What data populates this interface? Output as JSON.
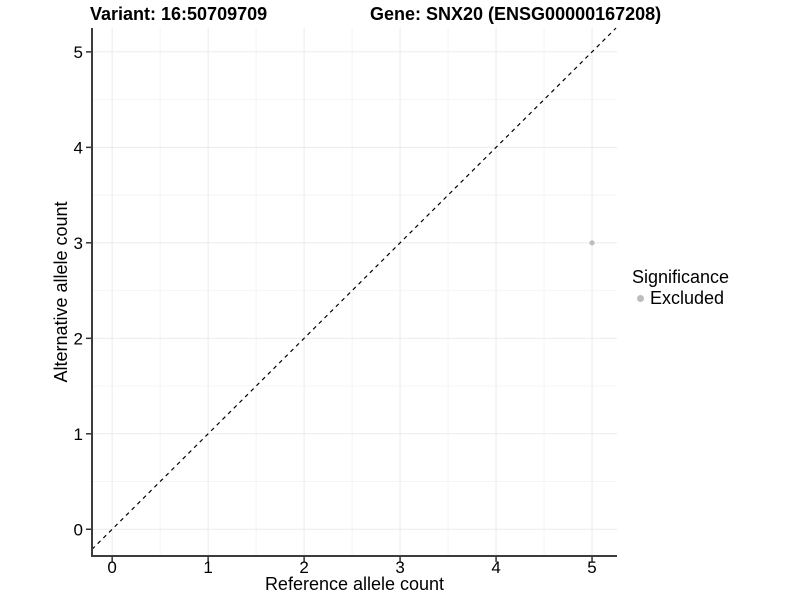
{
  "chart_data": {
    "type": "scatter",
    "titles": {
      "left": "Variant: 16:50709709",
      "right": "Gene: SNX20 (ENSG00000167208)"
    },
    "xlabel": "Reference allele count",
    "ylabel": "Alternative allele count",
    "x_ticks": [
      0,
      1,
      2,
      3,
      4,
      5
    ],
    "y_ticks": [
      0,
      1,
      2,
      3,
      4,
      5
    ],
    "xlim": [
      -0.21,
      5.26
    ],
    "ylim": [
      -0.28,
      5.25
    ],
    "grid": "major and minor, light gray on white",
    "points": [
      {
        "x": 5,
        "y": 3,
        "significance": "Excluded"
      }
    ],
    "identity_line": {
      "slope": 1,
      "intercept": 0,
      "style": "dashed"
    },
    "legend": {
      "title": "Significance",
      "position": "right",
      "entries": [
        {
          "label": "Excluded",
          "color": "#bdbdbd"
        }
      ]
    },
    "colors": {
      "point": "#bdbdbd",
      "grid_major": "#ebebeb",
      "grid_minor": "#f4f4f4",
      "axis_line": "#3c3c3c",
      "tick_mark": "#333333",
      "tick_text": "#000000",
      "dashed_line": "#000000",
      "background": "#ffffff"
    }
  }
}
